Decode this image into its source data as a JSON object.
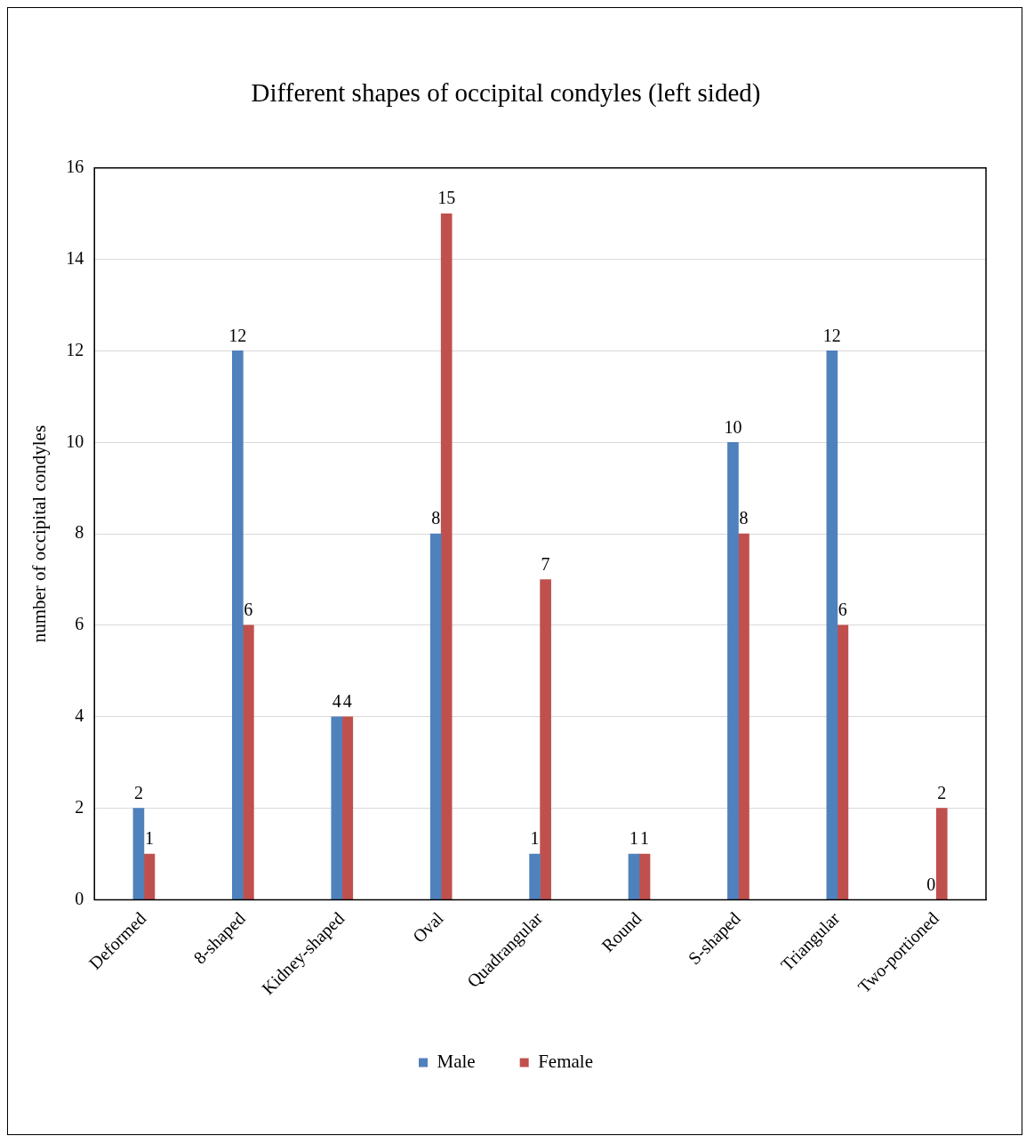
{
  "chart_data": {
    "type": "bar",
    "title": "Different shapes of occipital condyles (left sided)",
    "ylabel": "number of occipital condyles",
    "categories": [
      "Deformed",
      "8-shaped",
      "Kidney-shaped",
      "Oval",
      "Quadrangular",
      "Round",
      "S-shaped",
      "Triangular",
      "Two-portioned"
    ],
    "series": [
      {
        "name": "Male",
        "color": "#4f81bd",
        "values": [
          2,
          12,
          4,
          8,
          1,
          1,
          10,
          12,
          0
        ]
      },
      {
        "name": "Female",
        "color": "#c0504d",
        "values": [
          1,
          6,
          4,
          15,
          7,
          1,
          8,
          6,
          2
        ]
      }
    ],
    "ylim": [
      0,
      16
    ],
    "yticks": [
      0,
      2,
      4,
      6,
      8,
      10,
      12,
      14,
      16
    ],
    "grid": "y",
    "legend": "bottom",
    "data_labels": true
  }
}
